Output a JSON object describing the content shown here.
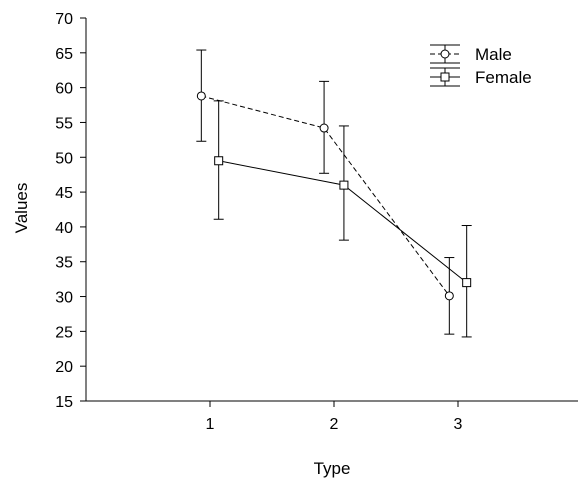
{
  "chart_data": {
    "type": "line",
    "title": "",
    "xlabel": "Type",
    "ylabel": "Values",
    "xlim": [
      0,
      4
    ],
    "ylim": [
      15,
      70
    ],
    "x_ticks": [
      1,
      2,
      3
    ],
    "y_ticks": [
      15,
      20,
      25,
      30,
      35,
      40,
      45,
      50,
      55,
      60,
      65,
      70
    ],
    "grid": false,
    "legend_position": "top-right",
    "series": [
      {
        "name": "Male",
        "line_style": "dashed",
        "marker": "circle",
        "color": "#000000",
        "x": [
          0.93,
          1.92,
          2.93
        ],
        "y": [
          58.8,
          54.2,
          30.1
        ],
        "error_low": [
          52.3,
          47.7,
          24.6
        ],
        "error_high": [
          65.4,
          60.9,
          35.6
        ]
      },
      {
        "name": "Female",
        "line_style": "solid",
        "marker": "square",
        "color": "#000000",
        "x": [
          1.07,
          2.08,
          3.07
        ],
        "y": [
          49.5,
          46.0,
          32.0
        ],
        "error_low": [
          41.1,
          38.1,
          24.2
        ],
        "error_high": [
          58.1,
          54.5,
          40.2
        ]
      }
    ]
  }
}
